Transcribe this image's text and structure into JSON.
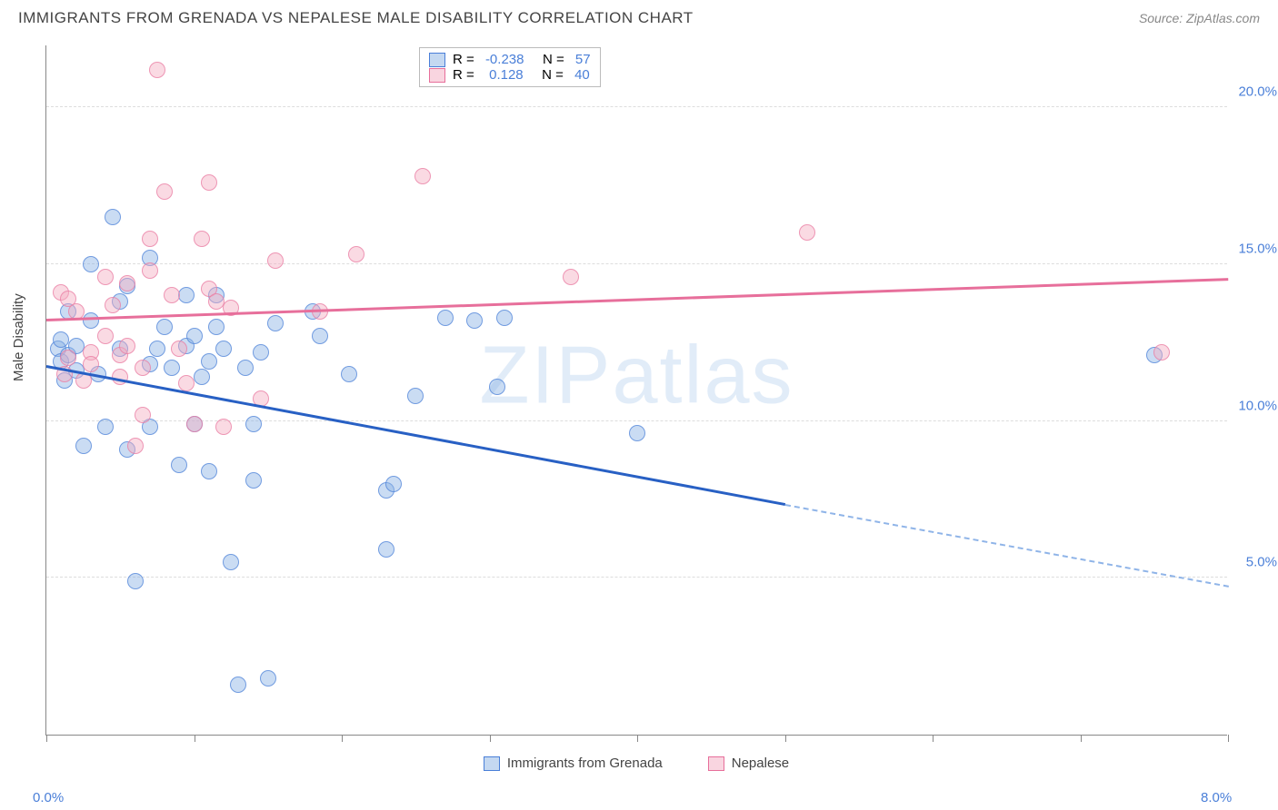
{
  "header": {
    "title": "IMMIGRANTS FROM GRENADA VS NEPALESE MALE DISABILITY CORRELATION CHART",
    "source": "Source: ZipAtlas.com"
  },
  "chart": {
    "type": "scatter",
    "ylabel": "Male Disability",
    "watermark": "ZIPatlas",
    "xlim": [
      0,
      8
    ],
    "ylim": [
      0,
      22
    ],
    "x_ticks": [
      0,
      1,
      2,
      3,
      4,
      5,
      6,
      7,
      8
    ],
    "x_tick_labels": {
      "0": "0.0%",
      "8": "8.0%"
    },
    "y_gridlines": [
      5,
      10,
      15,
      20
    ],
    "y_tick_labels": [
      "5.0%",
      "10.0%",
      "15.0%",
      "20.0%"
    ],
    "grid_color": "#dddddd",
    "axis_color": "#888888",
    "background_color": "#ffffff",
    "series": [
      {
        "name": "Immigrants from Grenada",
        "color_fill": "rgba(137,178,228,0.45)",
        "color_stroke": "#4a7fd8",
        "r_value": "-0.238",
        "n_value": "57",
        "trend": {
          "x1": 0,
          "y1": 11.7,
          "x2": 5,
          "y2": 7.3,
          "x2_ext": 8,
          "y2_ext": 4.7,
          "color": "#2860c4"
        },
        "points": [
          [
            0.08,
            12.3
          ],
          [
            0.1,
            11.9
          ],
          [
            0.1,
            12.6
          ],
          [
            0.12,
            11.3
          ],
          [
            0.15,
            12.1
          ],
          [
            0.15,
            13.5
          ],
          [
            0.2,
            11.6
          ],
          [
            0.2,
            12.4
          ],
          [
            0.25,
            9.2
          ],
          [
            0.3,
            13.2
          ],
          [
            0.3,
            15.0
          ],
          [
            0.35,
            11.5
          ],
          [
            0.4,
            9.8
          ],
          [
            0.45,
            16.5
          ],
          [
            0.5,
            13.8
          ],
          [
            0.5,
            12.3
          ],
          [
            0.55,
            14.3
          ],
          [
            0.55,
            9.1
          ],
          [
            0.6,
            4.9
          ],
          [
            0.7,
            11.8
          ],
          [
            0.7,
            15.2
          ],
          [
            0.7,
            9.8
          ],
          [
            0.75,
            12.3
          ],
          [
            0.8,
            13.0
          ],
          [
            0.85,
            11.7
          ],
          [
            0.9,
            8.6
          ],
          [
            0.95,
            12.4
          ],
          [
            0.95,
            14.0
          ],
          [
            1.0,
            9.9
          ],
          [
            1.0,
            12.7
          ],
          [
            1.05,
            11.4
          ],
          [
            1.1,
            8.4
          ],
          [
            1.1,
            11.9
          ],
          [
            1.15,
            14.0
          ],
          [
            1.15,
            13.0
          ],
          [
            1.2,
            12.3
          ],
          [
            1.25,
            5.5
          ],
          [
            1.3,
            1.6
          ],
          [
            1.35,
            11.7
          ],
          [
            1.4,
            8.1
          ],
          [
            1.4,
            9.9
          ],
          [
            1.45,
            12.2
          ],
          [
            1.5,
            1.8
          ],
          [
            1.55,
            13.1
          ],
          [
            1.8,
            13.5
          ],
          [
            1.85,
            12.7
          ],
          [
            2.05,
            11.5
          ],
          [
            2.3,
            5.9
          ],
          [
            2.3,
            7.8
          ],
          [
            2.35,
            8.0
          ],
          [
            2.5,
            10.8
          ],
          [
            2.7,
            13.3
          ],
          [
            2.9,
            13.2
          ],
          [
            3.05,
            11.1
          ],
          [
            3.1,
            13.3
          ],
          [
            4.0,
            9.6
          ],
          [
            7.5,
            12.1
          ]
        ]
      },
      {
        "name": "Nepalese",
        "color_fill": "rgba(244,172,193,0.45)",
        "color_stroke": "#e76f9b",
        "r_value": "0.128",
        "n_value": "40",
        "trend": {
          "x1": 0,
          "y1": 13.2,
          "x2": 8,
          "y2": 14.5,
          "color": "#e76f9b"
        },
        "points": [
          [
            0.1,
            14.1
          ],
          [
            0.12,
            11.5
          ],
          [
            0.15,
            12.0
          ],
          [
            0.15,
            13.9
          ],
          [
            0.2,
            13.5
          ],
          [
            0.25,
            11.3
          ],
          [
            0.3,
            12.2
          ],
          [
            0.3,
            11.8
          ],
          [
            0.4,
            14.6
          ],
          [
            0.4,
            12.7
          ],
          [
            0.45,
            13.7
          ],
          [
            0.5,
            12.1
          ],
          [
            0.5,
            11.4
          ],
          [
            0.55,
            14.4
          ],
          [
            0.55,
            12.4
          ],
          [
            0.6,
            9.2
          ],
          [
            0.65,
            11.7
          ],
          [
            0.65,
            10.2
          ],
          [
            0.7,
            14.8
          ],
          [
            0.7,
            15.8
          ],
          [
            0.75,
            21.2
          ],
          [
            0.8,
            17.3
          ],
          [
            0.85,
            14.0
          ],
          [
            0.9,
            12.3
          ],
          [
            0.95,
            11.2
          ],
          [
            1.0,
            9.9
          ],
          [
            1.05,
            15.8
          ],
          [
            1.1,
            14.2
          ],
          [
            1.1,
            17.6
          ],
          [
            1.15,
            13.8
          ],
          [
            1.2,
            9.8
          ],
          [
            1.25,
            13.6
          ],
          [
            1.45,
            10.7
          ],
          [
            1.55,
            15.1
          ],
          [
            1.85,
            13.5
          ],
          [
            2.1,
            15.3
          ],
          [
            2.55,
            17.8
          ],
          [
            3.55,
            14.6
          ],
          [
            5.15,
            16.0
          ],
          [
            7.55,
            12.2
          ]
        ]
      }
    ],
    "bottom_legend": [
      {
        "label": "Immigrants from Grenada",
        "swatch": "blue"
      },
      {
        "label": "Nepalese",
        "swatch": "pink"
      }
    ]
  }
}
